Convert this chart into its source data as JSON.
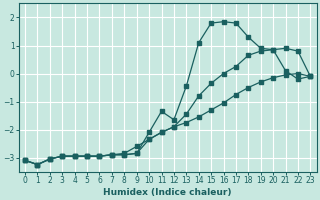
{
  "xlabel": "Humidex (Indice chaleur)",
  "bg_color": "#c8e8e0",
  "line_color": "#1a6060",
  "grid_color": "#ffffff",
  "ylim": [
    -3.5,
    2.5
  ],
  "xlim": [
    -0.5,
    23.5
  ],
  "xticks": [
    0,
    1,
    2,
    3,
    4,
    5,
    6,
    7,
    8,
    9,
    10,
    11,
    12,
    13,
    14,
    15,
    16,
    17,
    18,
    19,
    20,
    21,
    22,
    23
  ],
  "yticks": [
    -3,
    -2,
    -1,
    0,
    1,
    2
  ],
  "line1_x": [
    0,
    1,
    2,
    3,
    4,
    5,
    6,
    7,
    8,
    9,
    10,
    11,
    12,
    13,
    14,
    15,
    16,
    17,
    18,
    19,
    20,
    21,
    22,
    23
  ],
  "line1_y": [
    -3.1,
    -3.25,
    -3.05,
    -2.95,
    -2.95,
    -2.95,
    -2.95,
    -2.9,
    -2.9,
    -2.85,
    -2.1,
    -1.35,
    -1.65,
    -0.45,
    1.1,
    1.8,
    1.85,
    1.8,
    1.3,
    0.9,
    0.85,
    0.1,
    -0.2,
    -0.1
  ],
  "line2_x": [
    0,
    1,
    2,
    3,
    4,
    5,
    6,
    7,
    8,
    9,
    10,
    11,
    12,
    13,
    14,
    15,
    16,
    17,
    18,
    19,
    20,
    21,
    22,
    23
  ],
  "line2_y": [
    -3.1,
    -3.25,
    -3.05,
    -2.95,
    -2.95,
    -2.95,
    -2.95,
    -2.9,
    -2.9,
    -2.85,
    -2.35,
    -2.1,
    -1.9,
    -1.45,
    -0.8,
    -0.35,
    0.0,
    0.25,
    0.65,
    0.8,
    0.85,
    0.9,
    0.8,
    -0.1
  ],
  "line3_x": [
    0,
    1,
    2,
    3,
    4,
    5,
    6,
    7,
    8,
    9,
    10,
    11,
    12,
    13,
    14,
    15,
    16,
    17,
    18,
    19,
    20,
    21,
    22,
    23
  ],
  "line3_y": [
    -3.1,
    -3.25,
    -3.05,
    -2.95,
    -2.95,
    -2.95,
    -2.95,
    -2.9,
    -2.85,
    -2.6,
    -2.35,
    -2.1,
    -1.9,
    -1.75,
    -1.55,
    -1.3,
    -1.05,
    -0.75,
    -0.5,
    -0.3,
    -0.15,
    -0.05,
    0.0,
    -0.1
  ]
}
